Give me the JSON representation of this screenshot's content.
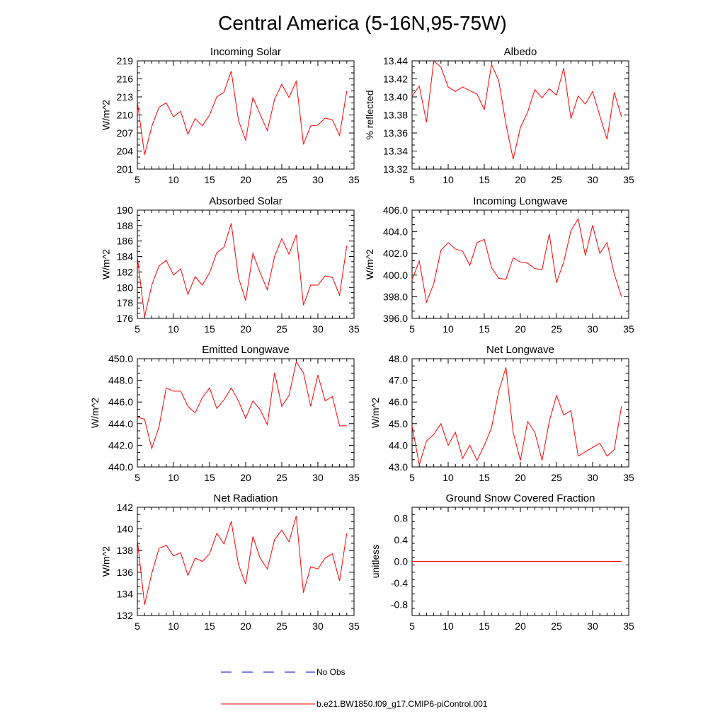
{
  "title": "Central America (5-16N,95-75W)",
  "colors": {
    "model": "#ff0000",
    "obs": "#0000cc",
    "axis": "#000000"
  },
  "chart_data": [
    {
      "type": "line",
      "title": "Incoming Solar",
      "xlabel": "",
      "ylabel": "W/m^2",
      "xlim": [
        5,
        35
      ],
      "ylim": [
        201,
        219
      ],
      "xticks": [
        5,
        10,
        15,
        20,
        25,
        30,
        35
      ],
      "xticklabels": [
        "5",
        "10",
        "15",
        "20",
        "25",
        "30",
        "35"
      ],
      "yticks": [
        201,
        204,
        207,
        210,
        213,
        216,
        219
      ],
      "yticklabels": [
        "201",
        "204",
        "207",
        "210",
        "213",
        "216",
        "219"
      ],
      "x": [
        5,
        6,
        7,
        8,
        9,
        10,
        11,
        12,
        13,
        14,
        15,
        16,
        17,
        18,
        19,
        20,
        21,
        22,
        23,
        24,
        25,
        26,
        27,
        28,
        29,
        30,
        31,
        32,
        33,
        34
      ],
      "series": [
        {
          "name": "b.e21.BW1850.f09_g17.CMIP6-piControl.001",
          "values": [
            212.2,
            203.4,
            208.1,
            211.3,
            212.0,
            209.7,
            210.6,
            206.8,
            209.4,
            208.2,
            210.0,
            213.0,
            213.8,
            217.3,
            209.1,
            205.8,
            212.9,
            210.1,
            207.4,
            212.6,
            215.1,
            212.9,
            215.6,
            205.1,
            208.2,
            208.3,
            209.5,
            209.2,
            206.6,
            214.0
          ]
        }
      ]
    },
    {
      "type": "line",
      "title": "Albedo",
      "xlabel": "",
      "ylabel": "% reflected",
      "xlim": [
        5,
        35
      ],
      "ylim": [
        13.32,
        13.44
      ],
      "xticks": [
        5,
        10,
        15,
        20,
        25,
        30,
        35
      ],
      "xticklabels": [
        "5",
        "10",
        "15",
        "20",
        "25",
        "30",
        "35"
      ],
      "yticks": [
        13.32,
        13.34,
        13.36,
        13.38,
        13.4,
        13.42,
        13.44
      ],
      "yticklabels": [
        "13.32",
        "13.34",
        "13.36",
        "13.38",
        "13.40",
        "13.42",
        "13.44"
      ],
      "x": [
        5,
        6,
        7,
        8,
        9,
        10,
        11,
        12,
        13,
        14,
        15,
        16,
        17,
        18,
        19,
        20,
        21,
        22,
        23,
        24,
        25,
        26,
        27,
        28,
        29,
        30,
        31,
        32,
        33,
        34
      ],
      "series": [
        {
          "name": "b.e21.BW1850.f09_g17.CMIP6-piControl.001",
          "values": [
            13.401,
            13.412,
            13.372,
            13.44,
            13.433,
            13.411,
            13.406,
            13.411,
            13.407,
            13.403,
            13.386,
            13.436,
            13.418,
            13.37,
            13.331,
            13.366,
            13.383,
            13.408,
            13.399,
            13.409,
            13.402,
            13.432,
            13.376,
            13.401,
            13.392,
            13.406,
            13.379,
            13.353,
            13.405,
            13.378
          ]
        }
      ]
    },
    {
      "type": "line",
      "title": "Absorbed Solar",
      "xlabel": "",
      "ylabel": "W/m^2",
      "xlim": [
        5,
        35
      ],
      "ylim": [
        176,
        190
      ],
      "xticks": [
        5,
        10,
        15,
        20,
        25,
        30,
        35
      ],
      "xticklabels": [
        "5",
        "10",
        "15",
        "20",
        "25",
        "30",
        "35"
      ],
      "yticks": [
        176,
        178,
        180,
        182,
        184,
        186,
        188,
        190
      ],
      "yticklabels": [
        "176",
        "178",
        "180",
        "182",
        "184",
        "186",
        "188",
        "190"
      ],
      "x": [
        5,
        6,
        7,
        8,
        9,
        10,
        11,
        12,
        13,
        14,
        15,
        16,
        17,
        18,
        19,
        20,
        21,
        22,
        23,
        24,
        25,
        26,
        27,
        28,
        29,
        30,
        31,
        32,
        33,
        34
      ],
      "series": [
        {
          "name": "b.e21.BW1850.f09_g17.CMIP6-piControl.001",
          "values": [
            184.0,
            176.2,
            180.3,
            182.8,
            183.5,
            181.6,
            182.4,
            179.1,
            181.4,
            180.3,
            181.9,
            184.5,
            185.2,
            188.3,
            181.3,
            178.3,
            184.4,
            181.9,
            179.7,
            184.0,
            186.3,
            184.3,
            186.8,
            177.7,
            180.3,
            180.3,
            181.5,
            181.3,
            179.0,
            185.4
          ]
        }
      ]
    },
    {
      "type": "line",
      "title": "Incoming Longwave",
      "xlabel": "",
      "ylabel": "W/m^2",
      "xlim": [
        5,
        35
      ],
      "ylim": [
        396.0,
        406.0
      ],
      "xticks": [
        5,
        10,
        15,
        20,
        25,
        30,
        35
      ],
      "xticklabels": [
        "5",
        "10",
        "15",
        "20",
        "25",
        "30",
        "35"
      ],
      "yticks": [
        396,
        398,
        400,
        402,
        404,
        406
      ],
      "yticklabels": [
        "396.0",
        "398.0",
        "400.0",
        "402.0",
        "404.0",
        "406.0"
      ],
      "x": [
        5,
        6,
        7,
        8,
        9,
        10,
        11,
        12,
        13,
        14,
        15,
        16,
        17,
        18,
        19,
        20,
        21,
        22,
        23,
        24,
        25,
        26,
        27,
        28,
        29,
        30,
        31,
        32,
        33,
        34
      ],
      "series": [
        {
          "name": "b.e21.BW1850.f09_g17.CMIP6-piControl.001",
          "values": [
            399.6,
            401.3,
            397.5,
            399.2,
            402.3,
            403.0,
            402.4,
            402.2,
            400.9,
            403.0,
            403.3,
            400.7,
            399.7,
            399.6,
            401.6,
            401.2,
            401.1,
            400.6,
            400.5,
            403.8,
            399.3,
            401.2,
            404.1,
            405.2,
            401.8,
            404.6,
            402.0,
            403.0,
            400.1,
            398.0
          ]
        }
      ]
    },
    {
      "type": "line",
      "title": "Emitted Longwave",
      "xlabel": "",
      "ylabel": "W/m^2",
      "xlim": [
        5,
        35
      ],
      "ylim": [
        440.0,
        450.0
      ],
      "xticks": [
        5,
        10,
        15,
        20,
        25,
        30,
        35
      ],
      "xticklabels": [
        "5",
        "10",
        "15",
        "20",
        "25",
        "30",
        "35"
      ],
      "yticks": [
        440,
        442,
        444,
        446,
        448,
        450
      ],
      "yticklabels": [
        "440.0",
        "442.0",
        "444.0",
        "446.0",
        "448.0",
        "450.0"
      ],
      "x": [
        5,
        6,
        7,
        8,
        9,
        10,
        11,
        12,
        13,
        14,
        15,
        16,
        17,
        18,
        19,
        20,
        21,
        22,
        23,
        24,
        25,
        26,
        27,
        28,
        29,
        30,
        31,
        32,
        33,
        34
      ],
      "series": [
        {
          "name": "b.e21.BW1850.f09_g17.CMIP6-piControl.001",
          "values": [
            444.6,
            444.4,
            441.7,
            443.7,
            447.3,
            447.0,
            447.0,
            445.6,
            445.0,
            446.4,
            447.3,
            445.4,
            446.2,
            447.3,
            446.1,
            444.5,
            446.1,
            445.3,
            443.9,
            448.7,
            445.6,
            446.6,
            449.7,
            448.7,
            445.6,
            448.5,
            446.1,
            446.5,
            443.8,
            443.8
          ]
        }
      ]
    },
    {
      "type": "line",
      "title": "Net Longwave",
      "xlabel": "",
      "ylabel": "W/m^2",
      "xlim": [
        5,
        35
      ],
      "ylim": [
        43.0,
        48.0
      ],
      "xticks": [
        5,
        10,
        15,
        20,
        25,
        30,
        35
      ],
      "xticklabels": [
        "5",
        "10",
        "15",
        "20",
        "25",
        "30",
        "35"
      ],
      "yticks": [
        43,
        44,
        45,
        46,
        47,
        48
      ],
      "yticklabels": [
        "43.0",
        "44.0",
        "45.0",
        "46.0",
        "47.0",
        "48.0"
      ],
      "x": [
        5,
        6,
        7,
        8,
        9,
        10,
        11,
        12,
        13,
        14,
        15,
        16,
        17,
        18,
        19,
        20,
        21,
        22,
        23,
        24,
        25,
        26,
        27,
        28,
        29,
        30,
        31,
        32,
        33,
        34
      ],
      "series": [
        {
          "name": "b.e21.BW1850.f09_g17.CMIP6-piControl.001",
          "values": [
            44.9,
            43.1,
            44.2,
            44.5,
            45.0,
            44.0,
            44.6,
            43.4,
            44.0,
            43.3,
            44.0,
            44.8,
            46.5,
            47.6,
            44.6,
            43.3,
            45.1,
            44.6,
            43.3,
            45.1,
            46.3,
            45.4,
            45.6,
            43.5,
            43.7,
            43.9,
            44.1,
            43.5,
            43.8,
            45.8
          ]
        }
      ]
    },
    {
      "type": "line",
      "title": "Net Radiation",
      "xlabel": "",
      "ylabel": "W/m^2",
      "xlim": [
        5,
        35
      ],
      "ylim": [
        132,
        142
      ],
      "xticks": [
        5,
        10,
        15,
        20,
        25,
        30,
        35
      ],
      "xticklabels": [
        "5",
        "10",
        "15",
        "20",
        "25",
        "30",
        "35"
      ],
      "yticks": [
        132,
        134,
        136,
        138,
        140,
        142
      ],
      "yticklabels": [
        "132",
        "134",
        "136",
        "138",
        "140",
        "142"
      ],
      "x": [
        5,
        6,
        7,
        8,
        9,
        10,
        11,
        12,
        13,
        14,
        15,
        16,
        17,
        18,
        19,
        20,
        21,
        22,
        23,
        24,
        25,
        26,
        27,
        28,
        29,
        30,
        31,
        32,
        33,
        34
      ],
      "series": [
        {
          "name": "b.e21.BW1850.f09_g17.CMIP6-piControl.001",
          "values": [
            139.0,
            133.0,
            135.9,
            138.2,
            138.5,
            137.5,
            137.8,
            135.7,
            137.3,
            137.0,
            137.7,
            139.6,
            138.6,
            140.7,
            136.7,
            134.9,
            139.3,
            137.3,
            136.3,
            139.0,
            139.9,
            138.8,
            141.2,
            134.1,
            136.5,
            136.3,
            137.3,
            137.7,
            135.2,
            139.6
          ]
        }
      ]
    },
    {
      "type": "line",
      "title": "Ground Snow Covered Fraction",
      "xlabel": "",
      "ylabel": "unitless",
      "xlim": [
        5,
        35
      ],
      "ylim": [
        -1.0,
        1.0
      ],
      "xticks": [
        5,
        10,
        15,
        20,
        25,
        30,
        35
      ],
      "xticklabels": [
        "5",
        "10",
        "15",
        "20",
        "25",
        "30",
        "35"
      ],
      "yticks": [
        -0.8,
        -0.4,
        0.0,
        0.4,
        0.8
      ],
      "yticklabels": [
        "-0.8",
        "-0.4",
        "0.0",
        "0.4",
        "0.8"
      ],
      "x": [
        5,
        6,
        7,
        8,
        9,
        10,
        11,
        12,
        13,
        14,
        15,
        16,
        17,
        18,
        19,
        20,
        21,
        22,
        23,
        24,
        25,
        26,
        27,
        28,
        29,
        30,
        31,
        32,
        33,
        34
      ],
      "series": [
        {
          "name": "b.e21.BW1850.f09_g17.CMIP6-piControl.001",
          "values": [
            0,
            0,
            0,
            0,
            0,
            0,
            0,
            0,
            0,
            0,
            0,
            0,
            0,
            0,
            0,
            0,
            0,
            0,
            0,
            0,
            0,
            0,
            0,
            0,
            0,
            0,
            0,
            0,
            0,
            0
          ]
        }
      ]
    }
  ],
  "legend": {
    "items": [
      {
        "label": "No Obs",
        "style": "dashed",
        "color": "#0000cc"
      },
      {
        "label": "b.e21.BW1850.f09_g17.CMIP6-piControl.001",
        "style": "solid",
        "color": "#ff0000"
      }
    ]
  }
}
